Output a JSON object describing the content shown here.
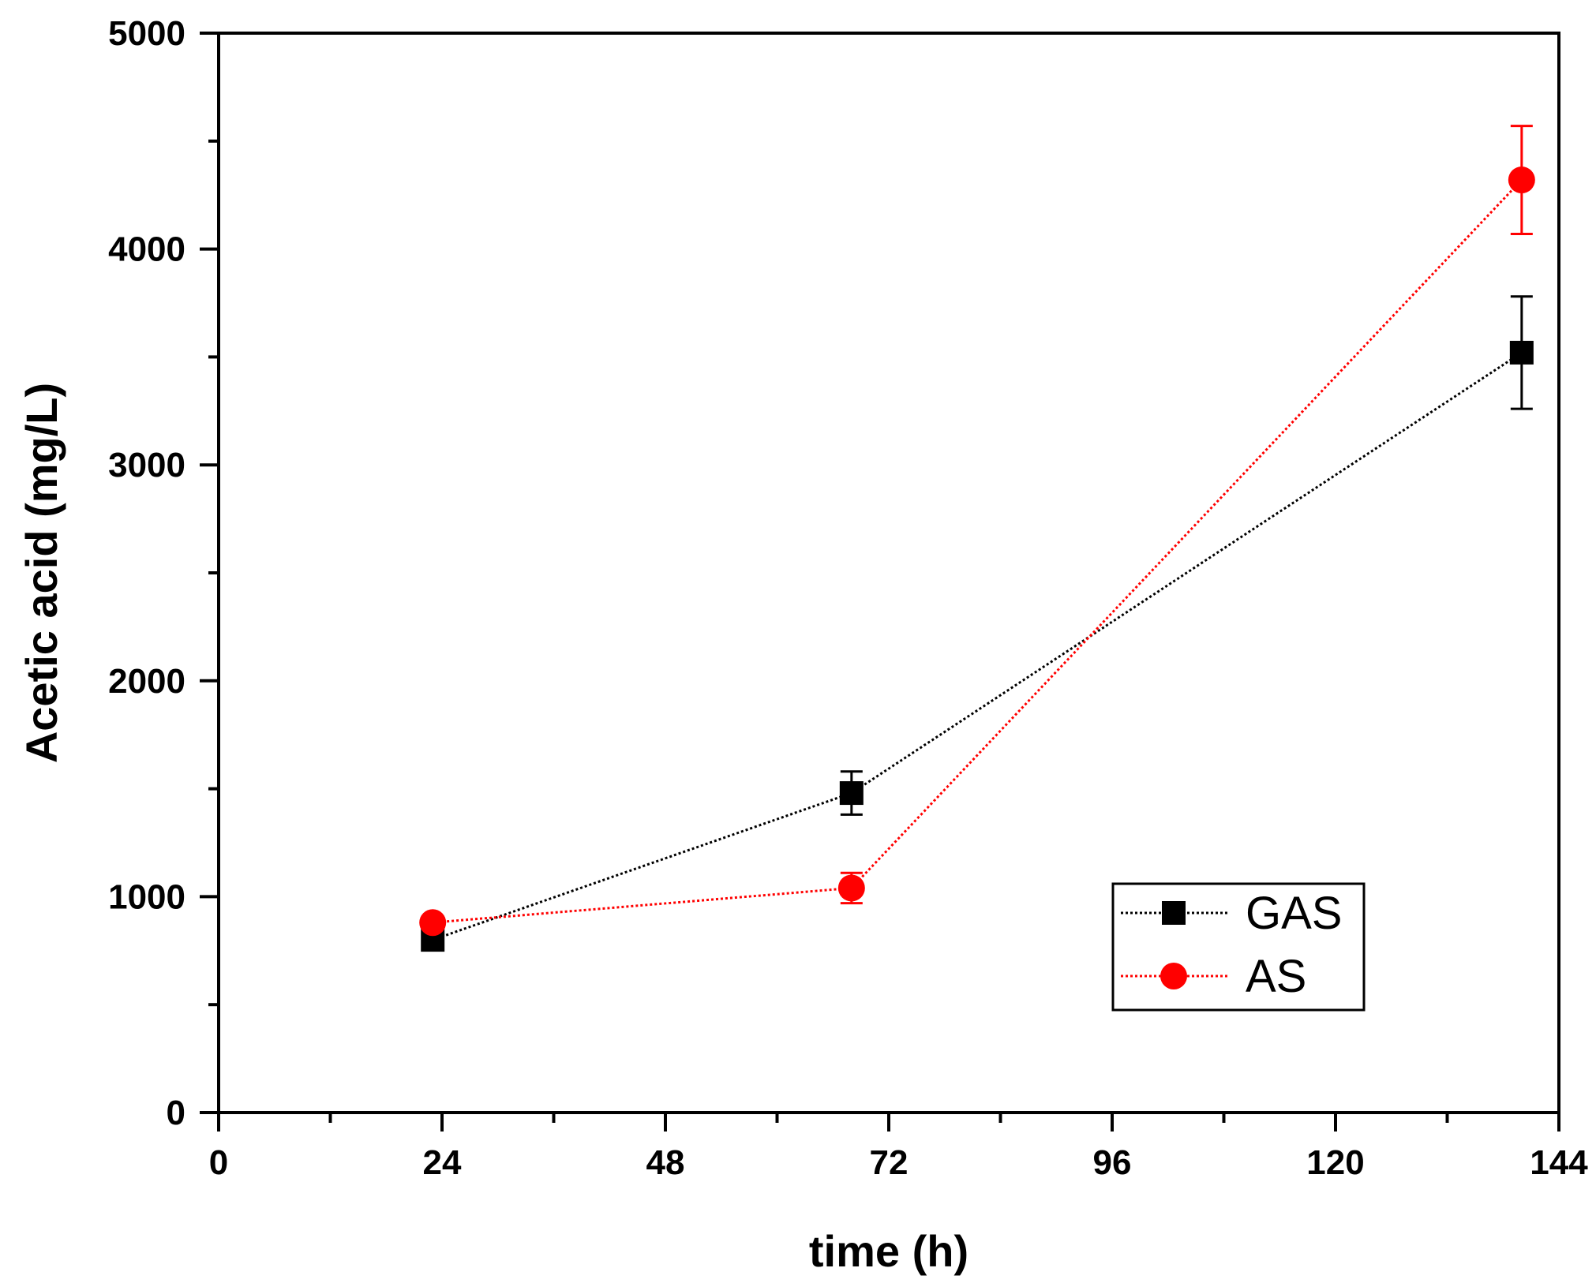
{
  "chart_data": {
    "type": "line",
    "title": "",
    "xlabel": "time (h)",
    "ylabel": "Acetic acid (mg/L)",
    "xlim": [
      0,
      144
    ],
    "ylim": [
      0,
      5000
    ],
    "xticks": [
      0,
      24,
      48,
      72,
      96,
      120,
      144
    ],
    "xtick_labels": [
      "0",
      "24",
      "48",
      "72",
      "96",
      "120",
      "144"
    ],
    "yticks": [
      0,
      1000,
      2000,
      3000,
      4000,
      5000
    ],
    "ytick_labels": [
      "0",
      "1000",
      "2000",
      "3000",
      "4000",
      "5000"
    ],
    "x_minor_step": 12,
    "y_minor_step": 500,
    "grid": false,
    "legend_position": "lower-right",
    "series": [
      {
        "name": "GAS",
        "color": "#000000",
        "marker": "square",
        "line_style": "dotted",
        "x": [
          23,
          68,
          140
        ],
        "y": [
          800,
          1480,
          3520
        ],
        "error": [
          0,
          100,
          260
        ]
      },
      {
        "name": "AS",
        "color": "#ff0000",
        "marker": "circle",
        "line_style": "dotted",
        "x": [
          23,
          68,
          140
        ],
        "y": [
          880,
          1040,
          4320
        ],
        "error": [
          0,
          70,
          250
        ]
      }
    ]
  }
}
